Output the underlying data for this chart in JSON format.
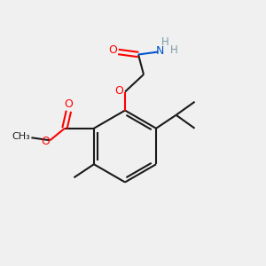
{
  "background_color": "#f0f0f0",
  "line_color": "#1a1a1a",
  "oxygen_color": "#ff0000",
  "nitrogen_color": "#0055cc",
  "h_color": "#7a9aaa",
  "bond_width": 1.5,
  "figsize": [
    3.0,
    3.0
  ],
  "dpi": 100,
  "xlim": [
    0,
    10
  ],
  "ylim": [
    0,
    10
  ]
}
